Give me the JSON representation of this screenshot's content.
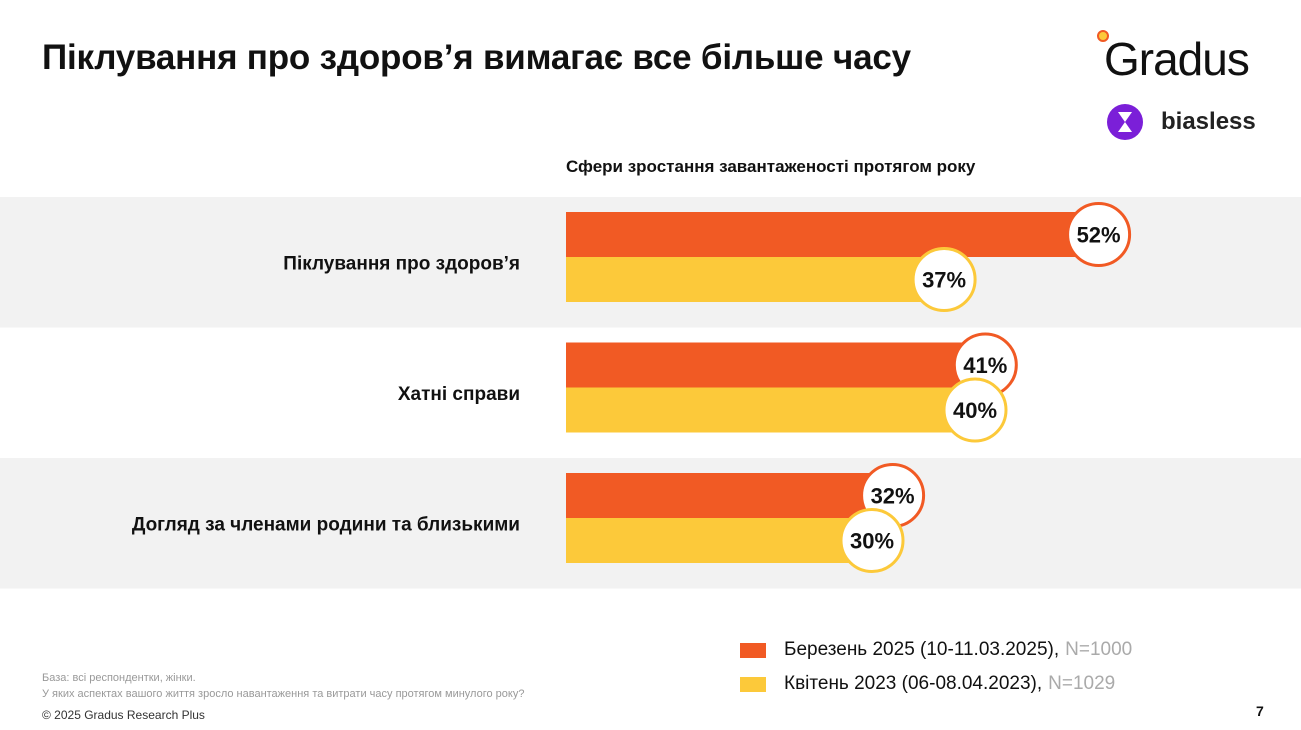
{
  "title": "Піклування про здоров’я вимагає все більше часу",
  "logos": {
    "gradus": "Gradus",
    "biasless": "biasless"
  },
  "chart_data": {
    "type": "bar",
    "orientation": "horizontal",
    "title": "Сфери зростання завантаженості протягом року",
    "categories": [
      "Піклування про здоров’я",
      "Хатні справи",
      "Догляд за членами родини та близькими"
    ],
    "series": [
      {
        "name": "Березень 2025 (10-11.03.2025)",
        "n": "N=1000",
        "color": "#f15a24",
        "values": [
          52,
          41,
          32
        ],
        "labels": [
          "52%",
          "41%",
          "32%"
        ]
      },
      {
        "name": "Квітень 2023 (06-08.04.2023)",
        "n": "N=1029",
        "color": "#fcc93a",
        "values": [
          37,
          40,
          30
        ],
        "labels": [
          "37%",
          "40%",
          "30%"
        ]
      }
    ],
    "unit": "%",
    "legend": "bottom-right",
    "grid": false
  },
  "footer": {
    "base": "База: всі респондентки, жінки.",
    "question": "У яких аспектах вашого життя зросло навантаження та витрати часу протягом минулого року?",
    "copyright": "© 2025 Gradus Research Plus",
    "page": "7"
  }
}
